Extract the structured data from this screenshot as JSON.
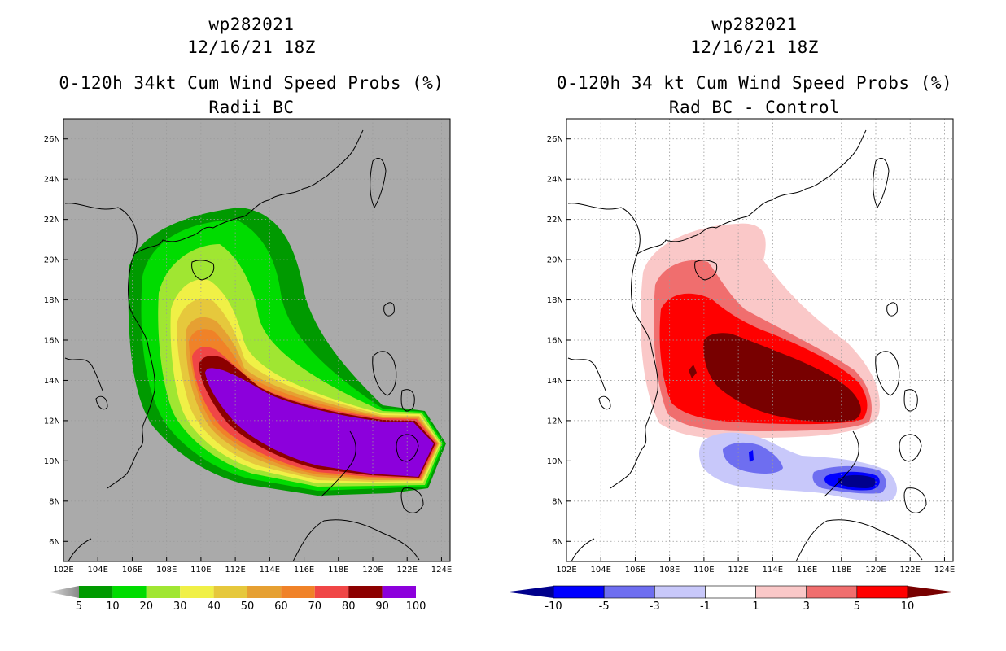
{
  "chart_data": [
    {
      "type": "heatmap",
      "title_lines": [
        "wp282021",
        "12/16/21 18Z",
        "0-120h 34kt Cum Wind Speed Probs (%)",
        "Radii BC"
      ],
      "x_ticks": [
        "102E",
        "104E",
        "106E",
        "108E",
        "110E",
        "112E",
        "114E",
        "116E",
        "118E",
        "120E",
        "122E",
        "124E"
      ],
      "y_ticks": [
        "6N",
        "8N",
        "10N",
        "12N",
        "14N",
        "16N",
        "18N",
        "20N",
        "22N",
        "24N",
        "26N"
      ],
      "xlim": [
        102,
        124.5
      ],
      "ylim": [
        5,
        27
      ],
      "colorbar": {
        "labels": [
          "5",
          "10",
          "20",
          "30",
          "40",
          "50",
          "60",
          "70",
          "80",
          "90",
          "100"
        ],
        "colors": [
          "#009a00",
          "#00dc00",
          "#a0e632",
          "#f0f046",
          "#e6c83c",
          "#e6a032",
          "#f08228",
          "#f04646",
          "#8c0000",
          "#8c00dc"
        ]
      },
      "background": "#aaaaaa"
    },
    {
      "type": "heatmap",
      "title_lines": [
        "wp282021",
        "12/16/21 18Z",
        "0-120h 34 kt Cum Wind Speed Probs (%)",
        "Rad BC - Control"
      ],
      "x_ticks": [
        "102E",
        "104E",
        "106E",
        "108E",
        "110E",
        "112E",
        "114E",
        "116E",
        "118E",
        "120E",
        "122E",
        "124E"
      ],
      "y_ticks": [
        "6N",
        "8N",
        "10N",
        "12N",
        "14N",
        "16N",
        "18N",
        "20N",
        "22N",
        "24N",
        "26N"
      ],
      "xlim": [
        102,
        124.5
      ],
      "ylim": [
        5,
        27
      ],
      "colorbar": {
        "labels": [
          "-10",
          "-5",
          "-3",
          "-1",
          "1",
          "3",
          "5",
          "10"
        ],
        "colors": [
          "#00008c",
          "#0000ff",
          "#6e6ef0",
          "#c8c8fa",
          "#ffffff",
          "#fac8c8",
          "#f06e6e",
          "#ff0000",
          "#780000"
        ]
      },
      "background": "#ffffff"
    }
  ]
}
